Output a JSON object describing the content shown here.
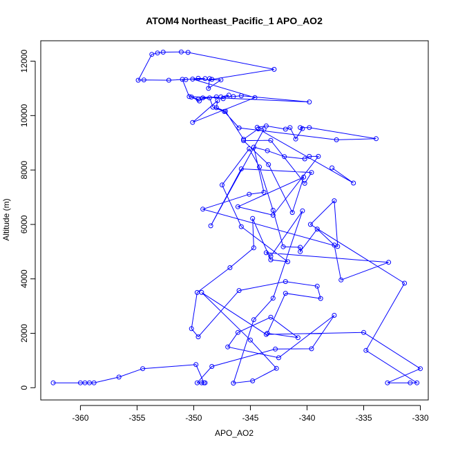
{
  "chart_data": {
    "type": "line",
    "title": "ATOM4 Northeast_Pacific_1 APO_AO2",
    "xlabel": "APO_AO2",
    "ylabel": "Altitude (m)",
    "xlim": [
      -363.5,
      -329.3
    ],
    "ylim": [
      -450,
      12750
    ],
    "xticks": [
      -360,
      -355,
      -350,
      -345,
      -340,
      -335,
      -330
    ],
    "xtick_labels": [
      "-360",
      "-355",
      "-350",
      "-345",
      "-340",
      "-335",
      "-330"
    ],
    "yticks": [
      0,
      2000,
      4000,
      6000,
      8000,
      10000,
      12000
    ],
    "ytick_labels": [
      "0",
      "2000",
      "4000",
      "6000",
      "8000",
      "10000",
      "12000"
    ],
    "grid": false,
    "series": [
      {
        "color": "#0000ff",
        "marker": "open-circle",
        "points": [
          [
            -362.4,
            180
          ],
          [
            -360.0,
            180
          ],
          [
            -359.6,
            180
          ],
          [
            -359.2,
            180
          ],
          [
            -358.8,
            180
          ],
          [
            -356.6,
            390
          ],
          [
            -354.5,
            700
          ],
          [
            -349.8,
            850
          ],
          [
            -349.1,
            180
          ],
          [
            -349.0,
            180
          ],
          [
            -349.3,
            180
          ],
          [
            -349.7,
            180
          ],
          [
            -348.4,
            780
          ],
          [
            -342.8,
            1420
          ],
          [
            -339.6,
            1430
          ],
          [
            -337.6,
            2660
          ],
          [
            -342.5,
            1100
          ],
          [
            -347.0,
            1500
          ],
          [
            -346.1,
            2030
          ],
          [
            -343.2,
            2590
          ],
          [
            -340.8,
            1840
          ],
          [
            -343.5,
            2000
          ],
          [
            -341.9,
            3470
          ],
          [
            -338.8,
            3280
          ],
          [
            -339.1,
            3730
          ],
          [
            -341.9,
            3900
          ],
          [
            -346.0,
            3570
          ],
          [
            -349.6,
            1870
          ],
          [
            -350.2,
            2170
          ],
          [
            -349.7,
            3500
          ],
          [
            -346.8,
            4410
          ],
          [
            -344.7,
            5140
          ],
          [
            -344.8,
            6220
          ],
          [
            -343.2,
            4700
          ],
          [
            -341.7,
            4630
          ],
          [
            -345.8,
            5920
          ],
          [
            -347.5,
            7450
          ],
          [
            -345.1,
            8780
          ],
          [
            -344.2,
            8110
          ],
          [
            -343.0,
            6520
          ],
          [
            -342.1,
            5180
          ],
          [
            -340.6,
            5160
          ],
          [
            -340.6,
            5000
          ],
          [
            -339.1,
            5830
          ],
          [
            -337.6,
            5240
          ],
          [
            -337.0,
            3960
          ],
          [
            -332.8,
            4610
          ],
          [
            -343.6,
            4960
          ],
          [
            -343.2,
            4830
          ],
          [
            -340.4,
            6500
          ],
          [
            -343.0,
            3290
          ],
          [
            -344.7,
            2500
          ],
          [
            -346.5,
            170
          ],
          [
            -344.8,
            250
          ],
          [
            -342.7,
            710
          ],
          [
            -345.0,
            1750
          ],
          [
            -349.3,
            3500
          ],
          [
            -343.6,
            1960
          ],
          [
            -335.0,
            2030
          ],
          [
            -330.0,
            700
          ],
          [
            -332.9,
            180
          ],
          [
            -330.9,
            180
          ],
          [
            -330.3,
            180
          ],
          [
            -334.8,
            1370
          ],
          [
            -331.4,
            3840
          ],
          [
            -339.7,
            6000
          ],
          [
            -337.6,
            6870
          ],
          [
            -337.3,
            5190
          ],
          [
            -349.2,
            6560
          ],
          [
            -345.1,
            7110
          ],
          [
            -343.8,
            7180
          ],
          [
            -344.7,
            8840
          ],
          [
            -343.5,
            8710
          ],
          [
            -342.0,
            8490
          ],
          [
            -340.2,
            8410
          ],
          [
            -339.8,
            8500
          ],
          [
            -339.0,
            8500
          ],
          [
            -343.0,
            6340
          ],
          [
            -346.1,
            6650
          ],
          [
            -340.3,
            7740
          ],
          [
            -341.3,
            6440
          ],
          [
            -343.4,
            8200
          ],
          [
            -345.6,
            9080
          ],
          [
            -343.2,
            9090
          ],
          [
            -340.2,
            7510
          ],
          [
            -339.6,
            7910
          ],
          [
            -345.8,
            8040
          ],
          [
            -348.5,
            5950
          ],
          [
            -343.8,
            9500
          ],
          [
            -344.4,
            9570
          ],
          [
            -343.6,
            9620
          ],
          [
            -341.9,
            9500
          ],
          [
            -341.5,
            9560
          ],
          [
            -341.0,
            9140
          ],
          [
            -340.4,
            9520
          ],
          [
            -340.6,
            9560
          ],
          [
            -339.8,
            9560
          ],
          [
            -333.9,
            9150
          ],
          [
            -337.4,
            9110
          ],
          [
            -346.0,
            9550
          ],
          [
            -347.3,
            10150
          ],
          [
            -348.3,
            10310
          ],
          [
            -348.6,
            10650
          ],
          [
            -349.6,
            10600
          ],
          [
            -350.2,
            10680
          ],
          [
            -349.5,
            10540
          ],
          [
            -349.2,
            10650
          ],
          [
            -348.0,
            10690
          ],
          [
            -347.4,
            10620
          ],
          [
            -346.9,
            10750
          ],
          [
            -347.6,
            10690
          ],
          [
            -346.5,
            10700
          ],
          [
            -345.8,
            10730
          ],
          [
            -339.8,
            10500
          ],
          [
            -350.4,
            10700
          ],
          [
            -351.0,
            11330
          ],
          [
            -350.7,
            11320
          ],
          [
            -349.6,
            11370
          ],
          [
            -349.0,
            11360
          ],
          [
            -352.2,
            11300
          ],
          [
            -354.4,
            11310
          ],
          [
            -354.9,
            11300
          ],
          [
            -353.7,
            12250
          ],
          [
            -353.2,
            12300
          ],
          [
            -352.7,
            12330
          ],
          [
            -351.1,
            12340
          ],
          [
            -350.5,
            12320
          ],
          [
            -342.9,
            11700
          ],
          [
            -348.4,
            11330
          ],
          [
            -348.6,
            11360
          ],
          [
            -348.7,
            11000
          ],
          [
            -347.6,
            11310
          ],
          [
            -350.1,
            11340
          ],
          [
            -344.6,
            10660
          ],
          [
            -350.1,
            9750
          ],
          [
            -347.9,
            10550
          ],
          [
            -348.0,
            10290
          ],
          [
            -347.2,
            10160
          ],
          [
            -345.6,
            9130
          ],
          [
            -344.3,
            9510
          ],
          [
            -335.9,
            7520
          ],
          [
            -337.8,
            8080
          ]
        ]
      }
    ]
  }
}
